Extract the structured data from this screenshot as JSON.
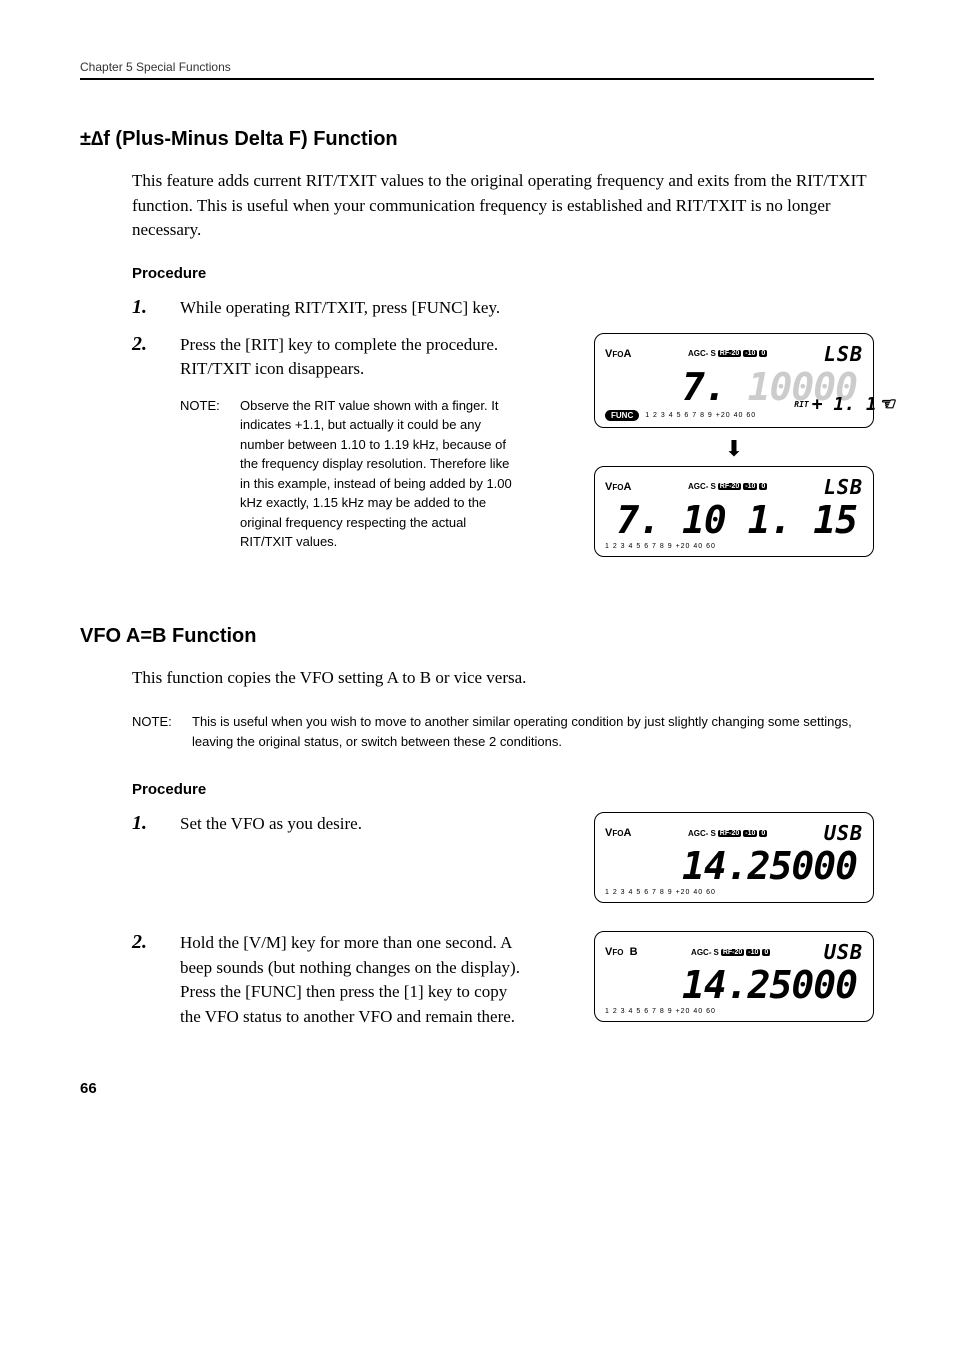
{
  "header": {
    "chapter": "Chapter 5    Special Functions"
  },
  "section1": {
    "title": "±∆f (Plus-Minus Delta F) Function",
    "intro": "This feature adds current RIT/TXIT values to the original operating frequency and exits from the RIT/TXIT function. This is useful when your communication frequency is established and RIT/TXIT is no longer necessary.",
    "procedure_label": "Procedure",
    "steps": {
      "s1": {
        "num": "1.",
        "text": "While operating RIT/TXIT, press [FUNC] key."
      },
      "s2": {
        "num": "2.",
        "text": "Press the [RIT] key to complete the procedure. RIT/TXIT icon disappears.",
        "note_label": "NOTE:",
        "note_text": "Observe the RIT value shown with a finger. It indicates +1.1, but actually it could be any number between 1.10 to 1.19 kHz, because of the frequency display resolution. Therefore like in this example, instead of being added by 1.00 kHz exactly, 1.15 kHz may be added to the original frequency respecting the actual RIT/TXIT values."
      }
    }
  },
  "section2": {
    "title": "VFO A=B Function",
    "intro": "This function copies the VFO setting A to B or vice versa.",
    "note_label": "NOTE:",
    "note_text": "This is useful when you wish to move to another similar operating condition by just slightly changing some settings, leaving the original status, or switch between these 2 conditions.",
    "procedure_label": "Procedure",
    "steps": {
      "s1": {
        "num": "1.",
        "text": "Set the VFO as you desire."
      },
      "s2": {
        "num": "2.",
        "text": "Hold the [V/M] key for more than one second. A beep sounds (but nothing changes on the display). Press the [FUNC] then press the [1] key to copy the VFO status to another VFO and remain there."
      }
    }
  },
  "lcd": {
    "agc_label": "AGC-",
    "agc_s": "S",
    "rf20": "RF-20",
    "n10": "-10",
    "zero": "0",
    "meter": "1  2  3  4  5  6  7  8  9",
    "meter_hi": "+20   40   60",
    "d1": {
      "vfo": "VFOA",
      "mode": "LSB",
      "freq_lead": "7. ",
      "freq_main": "10000",
      "func": "FUNC",
      "rit_label": "RIT",
      "rit_val": "+  1. 1"
    },
    "d2": {
      "vfo": "VFOA",
      "mode": "LSB",
      "freq": "7. 10 1. 15"
    },
    "d3": {
      "vfo": "VFOA",
      "mode": "USB",
      "freq": "14.25000"
    },
    "d4": {
      "vfo": "VFO  B",
      "mode": "USB",
      "freq": "14.25000"
    }
  },
  "page": "66"
}
